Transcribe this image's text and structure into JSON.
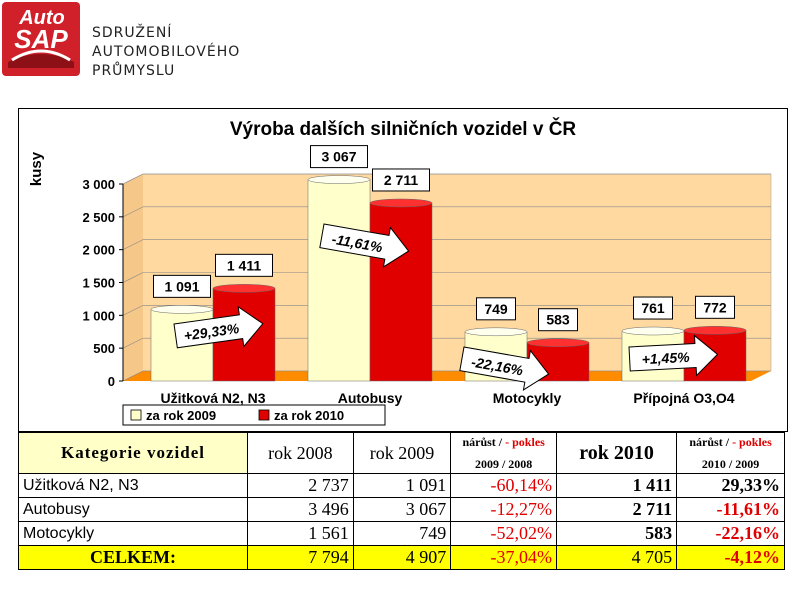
{
  "brand": {
    "logo_top": "Auto",
    "logo_bottom": "SAP",
    "lines": [
      "SDRUŽENÍ",
      "AUTOMOBILOVÉHO",
      "PRŮMYSLU"
    ]
  },
  "chart_data": {
    "type": "bar",
    "title": "Výroba dalších silničních vozidel v ČR",
    "ylabel": "kusy",
    "xlabel": "",
    "ylim": [
      0,
      3000
    ],
    "yticks": [
      "0",
      "500",
      "1 000",
      "1 500",
      "2 000",
      "2 500",
      "3 000"
    ],
    "categories": [
      "Užitková N2, N3",
      "Autobusy",
      "Motocykly",
      "Přípojná O3,O4"
    ],
    "series": [
      {
        "name": "za rok 2009",
        "values": [
          1091,
          3067,
          749,
          761
        ],
        "labels": [
          "1 091",
          "3 067",
          "749",
          "761"
        ],
        "color": "#ffffcc"
      },
      {
        "name": "za rok 2010",
        "values": [
          1411,
          2711,
          583,
          772
        ],
        "labels": [
          "1 411",
          "2 711",
          "583",
          "772"
        ],
        "color": "#e00000"
      }
    ],
    "annotations": [
      "+29,33%",
      "-11,61%",
      "-22,16%",
      "+1,45%"
    ],
    "legend": "bottom-left",
    "colors": {
      "wall": "#ffd9a0",
      "floor": "#ff8c00"
    }
  },
  "table": {
    "headers": {
      "category": "Kategorie vozidel",
      "y2008": "rok 2008",
      "y2009": "rok 2009",
      "growth1_top": "nárůst / ",
      "growth1_top_red": "- pokles",
      "growth1_bottom": "2009 / 2008",
      "y2010": "rok 2010",
      "growth2_top": "nárůst / ",
      "growth2_top_red": "- pokles",
      "growth2_bottom": "2010 / 2009"
    },
    "rows": [
      {
        "category": "Užitková N2, N3",
        "y2008": "2 737",
        "y2009": "1 091",
        "g1": "-60,14%",
        "y2010": "1 411",
        "g2": "29,33%"
      },
      {
        "category": "Autobusy",
        "y2008": "3 496",
        "y2009": "3 067",
        "g1": "-12,27%",
        "y2010": "2 711",
        "g2": "-11,61%"
      },
      {
        "category": "Motocykly",
        "y2008": "1 561",
        "y2009": "749",
        "g1": "-52,02%",
        "y2010": "583",
        "g2": "-22,16%"
      }
    ],
    "total": {
      "category": "CELKEM:",
      "y2008": "7 794",
      "y2009": "4 907",
      "g1": "-37,04%",
      "y2010": "4 705",
      "g2": "-4,12%"
    }
  }
}
